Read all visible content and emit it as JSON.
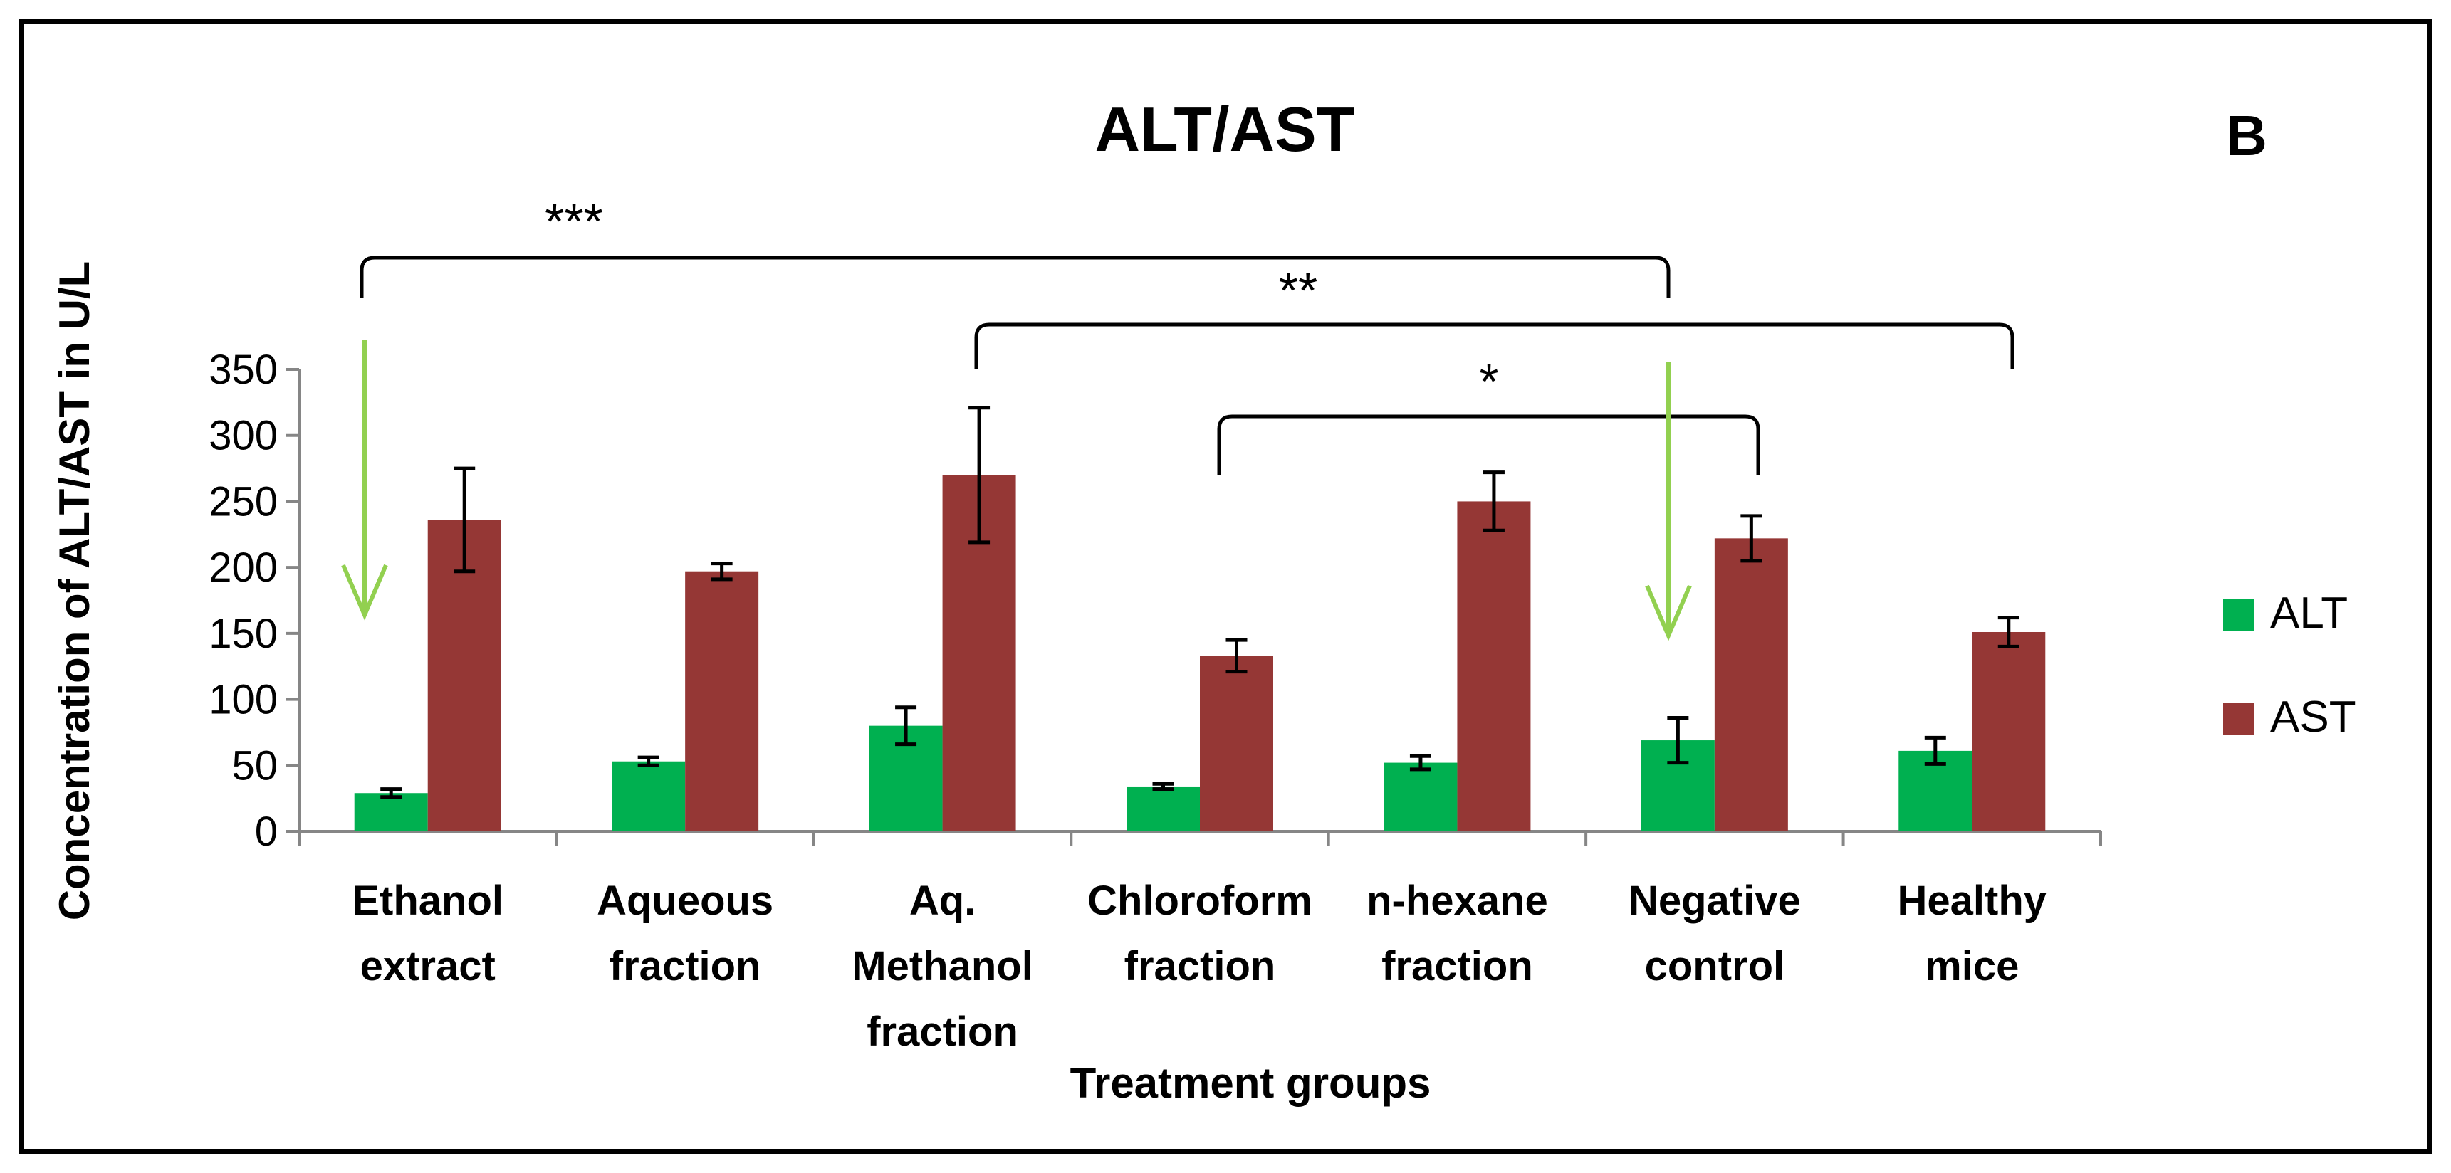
{
  "chart_data": {
    "type": "bar",
    "title": "ALT/AST",
    "panel_label": "B",
    "xlabel": "Treatment groups",
    "ylabel": "Concentration of ALT/AST in U/L",
    "ylim": [
      0,
      350
    ],
    "yticks": [
      0,
      50,
      100,
      150,
      200,
      250,
      300,
      350
    ],
    "categories": [
      [
        "Ethanol",
        "extract"
      ],
      [
        "Aqueous",
        "fraction"
      ],
      [
        "Aq.",
        "Methanol",
        "fraction"
      ],
      [
        "Chloroform",
        "fraction"
      ],
      [
        "n-hexane",
        "fraction"
      ],
      [
        "Negative",
        "control"
      ],
      [
        "Healthy",
        "mice"
      ]
    ],
    "series": [
      {
        "name": "ALT",
        "color": "#00b050",
        "values": [
          29,
          53,
          80,
          34,
          52,
          69,
          61
        ],
        "errors": [
          3,
          3,
          14,
          2,
          5,
          17,
          10
        ]
      },
      {
        "name": "AST",
        "color": "#953735",
        "values": [
          236,
          197,
          270,
          133,
          250,
          222,
          151
        ],
        "errors": [
          39,
          6,
          51,
          12,
          22,
          17,
          11
        ]
      }
    ],
    "legend_position": "right",
    "grid": false,
    "annotations": {
      "brackets": [
        {
          "label": "***",
          "from": 0,
          "to": 5
        },
        {
          "label": "**",
          "from": 2,
          "to": 6
        },
        {
          "label": "*",
          "from": 3,
          "to": 5
        }
      ],
      "arrows": [
        {
          "category": 0,
          "color": "#92d050"
        },
        {
          "category": 5,
          "color": "#92d050"
        }
      ]
    }
  }
}
